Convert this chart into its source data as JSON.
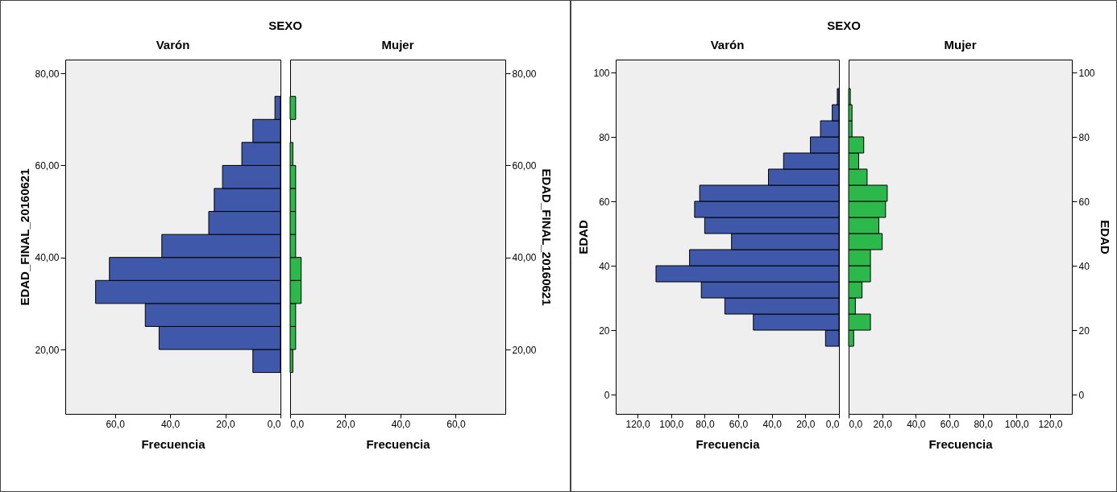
{
  "chart_data": [
    {
      "type": "histogram",
      "orientation": "horizontal",
      "title": "Varón",
      "annotations": [
        "SEXO"
      ],
      "xlabel": "Frecuencia",
      "ylabel": "EDAD_FINAL_20160621",
      "bins": [
        15,
        20,
        25,
        30,
        35,
        40,
        45,
        50,
        55,
        60,
        65,
        70,
        75
      ],
      "values": [
        10,
        44,
        49,
        67,
        62,
        43,
        26,
        24,
        21,
        14,
        10,
        2
      ],
      "color": "#3f58aa",
      "xlim": [
        78,
        0
      ],
      "xticks": [
        {
          "value": 60,
          "label": "60,0"
        },
        {
          "value": 40,
          "label": "40,0"
        },
        {
          "value": 20,
          "label": "20,0"
        },
        {
          "value": 0,
          "label": "0,0"
        }
      ],
      "ylim": [
        6,
        83
      ],
      "yticks": [
        {
          "value": 20,
          "label": "20,00"
        },
        {
          "value": 40,
          "label": "40,00"
        },
        {
          "value": 60,
          "label": "60,00"
        },
        {
          "value": 80,
          "label": "80,00"
        }
      ]
    },
    {
      "type": "histogram",
      "orientation": "horizontal",
      "title": "Mujer",
      "xlabel": "Frecuencia",
      "ylabel": "EDAD_FINAL_20160621",
      "bins": [
        15,
        20,
        25,
        30,
        35,
        40,
        45,
        50,
        55,
        60,
        65,
        70,
        75
      ],
      "values": [
        1,
        2,
        2,
        4,
        4,
        2,
        2,
        2,
        2,
        1,
        0,
        2
      ],
      "color": "#2db84b",
      "xlim": [
        0,
        78
      ],
      "xticks": [
        {
          "value": 0,
          "label": "0,0"
        },
        {
          "value": 20,
          "label": "20,0"
        },
        {
          "value": 40,
          "label": "40,0"
        },
        {
          "value": 60,
          "label": "60,0"
        }
      ],
      "ylim": [
        6,
        83
      ],
      "yticks": [
        {
          "value": 20,
          "label": "20,00"
        },
        {
          "value": 40,
          "label": "40,00"
        },
        {
          "value": 60,
          "label": "60,00"
        },
        {
          "value": 80,
          "label": "80,00"
        }
      ]
    },
    {
      "type": "histogram",
      "orientation": "horizontal",
      "title": "Varón",
      "annotations": [
        "SEXO"
      ],
      "xlabel": "Frecuencia",
      "ylabel": "EDAD",
      "bins": [
        15,
        20,
        25,
        30,
        35,
        40,
        45,
        50,
        55,
        60,
        65,
        70,
        75,
        80,
        85,
        90,
        95
      ],
      "values": [
        8,
        51,
        68,
        82,
        109,
        89,
        64,
        80,
        86,
        83,
        42,
        33,
        17,
        11,
        4,
        1
      ],
      "color": "#3f58aa",
      "xlim": [
        133,
        0
      ],
      "xticks": [
        {
          "value": 120,
          "label": "120,0"
        },
        {
          "value": 100,
          "label": "100,0"
        },
        {
          "value": 80,
          "label": "80,0"
        },
        {
          "value": 60,
          "label": "60,0"
        },
        {
          "value": 40,
          "label": "40,0"
        },
        {
          "value": 20,
          "label": "20,0"
        },
        {
          "value": 0,
          "label": "0,0"
        }
      ],
      "ylim": [
        -6,
        104
      ],
      "yticks": [
        0,
        20,
        40,
        60,
        80,
        100
      ]
    },
    {
      "type": "histogram",
      "orientation": "horizontal",
      "title": "Mujer",
      "xlabel": "Frecuencia",
      "ylabel": "EDAD",
      "bins": [
        15,
        20,
        25,
        30,
        35,
        40,
        45,
        50,
        55,
        60,
        65,
        70,
        75,
        80,
        85,
        90,
        95
      ],
      "values": [
        3,
        13,
        4,
        8,
        13,
        13,
        20,
        18,
        22,
        23,
        11,
        6,
        9,
        2,
        2,
        1
      ],
      "color": "#2db84b",
      "xlim": [
        0,
        133
      ],
      "xticks": [
        {
          "value": 0,
          "label": "0,0"
        },
        {
          "value": 20,
          "label": "20,0"
        },
        {
          "value": 40,
          "label": "40,0"
        },
        {
          "value": 60,
          "label": "60,0"
        },
        {
          "value": 80,
          "label": "80,0"
        },
        {
          "value": 100,
          "label": "100,0"
        },
        {
          "value": 120,
          "label": "120,0"
        }
      ],
      "ylim": [
        -6,
        104
      ],
      "yticks": [
        0,
        20,
        40,
        60,
        80,
        100
      ]
    }
  ]
}
